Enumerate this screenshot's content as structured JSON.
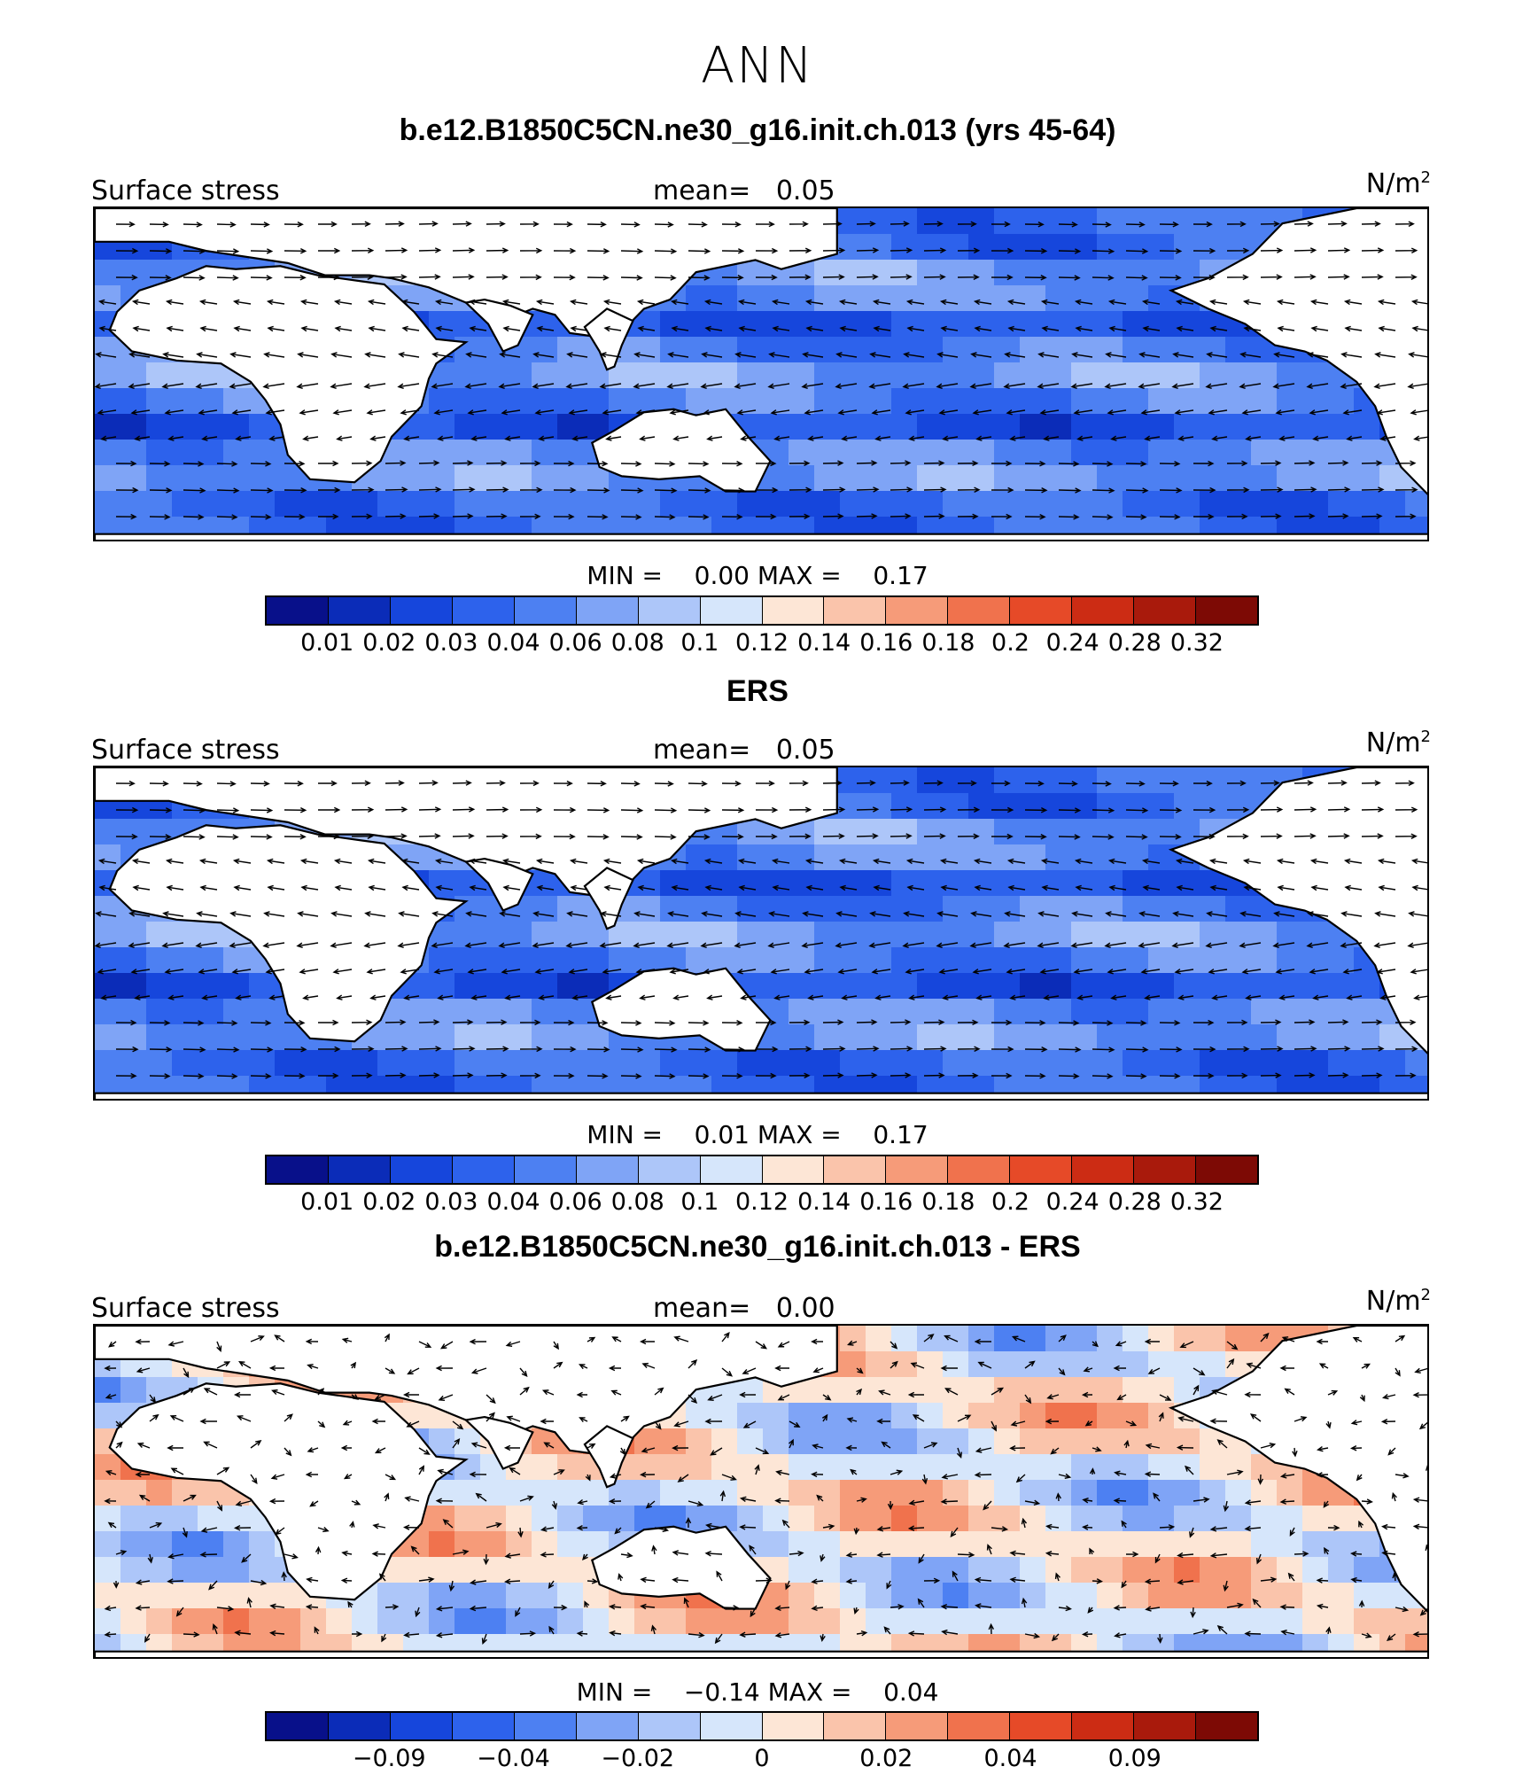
{
  "figure": {
    "title": "ANN",
    "palette": [
      "#08108a",
      "#0b2cb8",
      "#1646dc",
      "#2d62ec",
      "#4d80f2",
      "#7fa4f6",
      "#adc6f9",
      "#d6e6fb",
      "#fde6d6",
      "#fac4ab",
      "#f69b79",
      "#f0724d",
      "#e64a28",
      "#cc2c14",
      "#a91a0c",
      "#7d0a05"
    ],
    "panels": [
      {
        "title": "b.e12.B1850C5CN.ne30_g16.init.ch.013 (yrs 45-64)",
        "left_label": "Surface stress",
        "mean_label": "mean=",
        "mean_value": "0.05",
        "units": "N/m",
        "units_exp": "2",
        "min_label": "MIN =",
        "min_value": "0.00",
        "max_label": "MAX =",
        "max_value": "0.17",
        "tick_labels": [
          "0.01",
          "0.02",
          "0.03",
          "0.04",
          "0.06",
          "0.08",
          "0.1",
          "0.12",
          "0.14",
          "0.16",
          "0.18",
          "0.2",
          "0.24",
          "0.28",
          "0.32"
        ],
        "field_kind": "magnitude"
      },
      {
        "title": "ERS",
        "left_label": "Surface stress",
        "mean_label": "mean=",
        "mean_value": "0.05",
        "units": "N/m",
        "units_exp": "2",
        "min_label": "MIN =",
        "min_value": "0.01",
        "max_label": "MAX =",
        "max_value": "0.17",
        "tick_labels": [
          "0.01",
          "0.02",
          "0.03",
          "0.04",
          "0.06",
          "0.08",
          "0.1",
          "0.12",
          "0.14",
          "0.16",
          "0.18",
          "0.2",
          "0.24",
          "0.28",
          "0.32"
        ],
        "field_kind": "magnitude_obs"
      },
      {
        "title": "b.e12.B1850C5CN.ne30_g16.init.ch.013 - ERS",
        "left_label": "Surface stress",
        "mean_label": "mean=",
        "mean_value": "0.00",
        "units": "N/m",
        "units_exp": "2",
        "min_label": "MIN =",
        "min_value": "−0.14",
        "max_label": "MAX =",
        "max_value": "0.04",
        "tick_labels": [
          "",
          "−0.09",
          "",
          "−0.04",
          "",
          "−0.02",
          "",
          "0",
          "",
          "0.02",
          "",
          "0.04",
          "",
          "0.09",
          ""
        ],
        "field_kind": "difference"
      }
    ]
  }
}
